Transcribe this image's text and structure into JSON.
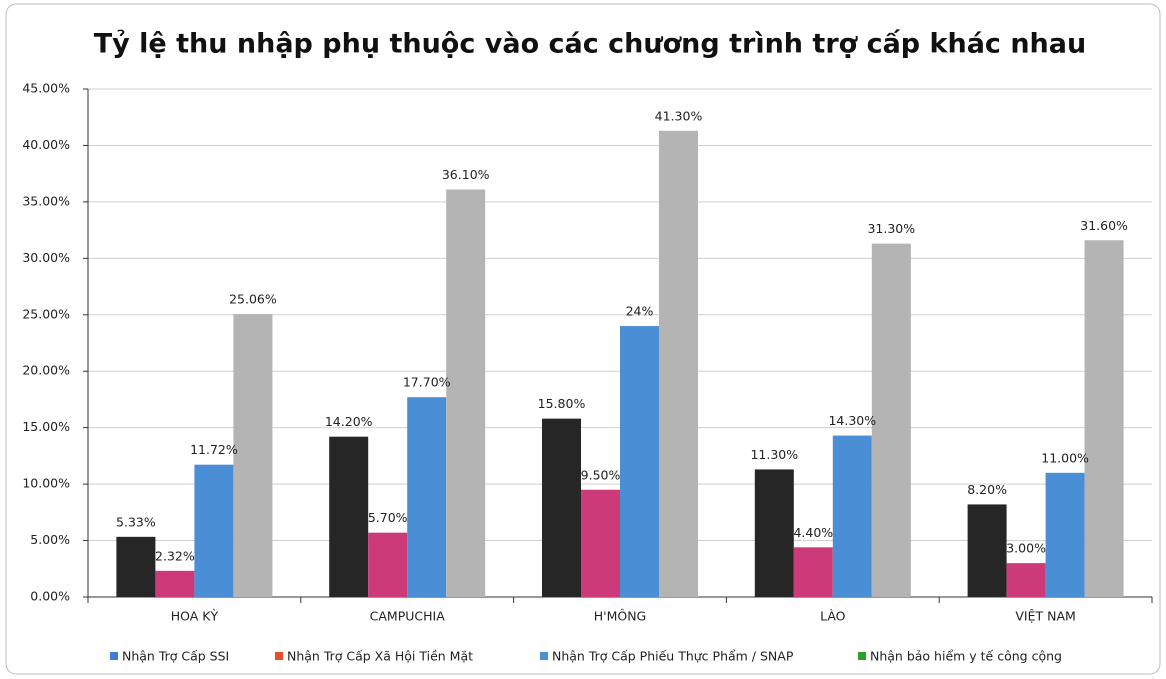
{
  "chart_data": {
    "type": "bar",
    "title": "Tỷ lệ thu nhập phụ thuộc vào các chương trình trợ cấp khác nhau",
    "categories": [
      "HOA KỲ",
      "CAMPUCHIA",
      "H'MÔNG",
      "LÀO",
      "VIỆT NAM"
    ],
    "series": [
      {
        "name": "Nhận Trợ Cấp SSI",
        "color": "#262626",
        "legend_color": "#3f7fd0",
        "values": [
          5.33,
          14.2,
          15.8,
          11.3,
          8.2
        ],
        "value_labels": [
          "5.33%",
          "14.20%",
          "15.80%",
          "11.30%",
          "8.20%"
        ]
      },
      {
        "name": "Nhận Trợ Cấp Xã Hội Tiền Mặt",
        "color": "#cc3a7a",
        "legend_color": "#e0502a",
        "values": [
          2.32,
          5.7,
          9.5,
          4.4,
          3.0
        ],
        "value_labels": [
          "2.32%",
          "5.70%",
          "9.50%",
          "4.40%",
          "3.00%"
        ]
      },
      {
        "name": "Nhận Trợ Cấp Phiếu Thực Phẩm / SNAP",
        "color": "#4a8fd6",
        "legend_color": "#4a8fd6",
        "values": [
          11.72,
          17.7,
          24,
          14.3,
          11.0
        ],
        "value_labels": [
          "11.72%",
          "17.70%",
          "24%",
          "14.30%",
          "11.00%"
        ]
      },
      {
        "name": "Nhận bảo hiểm y tế công cộng",
        "color": "#b4b4b4",
        "legend_color": "#2ca02c",
        "values": [
          25.06,
          36.1,
          41.3,
          31.3,
          31.6
        ],
        "value_labels": [
          "25.06%",
          "36.10%",
          "41.30%",
          "31.30%",
          "31.60%"
        ]
      }
    ],
    "ylim": [
      0,
      45
    ],
    "yticks": [
      {
        "value": 0,
        "label": "0.00%"
      },
      {
        "value": 5,
        "label": "5.00%"
      },
      {
        "value": 10,
        "label": "10.00%"
      },
      {
        "value": 15,
        "label": "15.00%"
      },
      {
        "value": 20,
        "label": "20.00%"
      },
      {
        "value": 25,
        "label": "25.00%"
      },
      {
        "value": 30,
        "label": "30.00%"
      },
      {
        "value": 35,
        "label": "35.00%"
      },
      {
        "value": 40,
        "label": "40.00%"
      },
      {
        "value": 45,
        "label": "45.00%"
      }
    ],
    "grid": true
  }
}
